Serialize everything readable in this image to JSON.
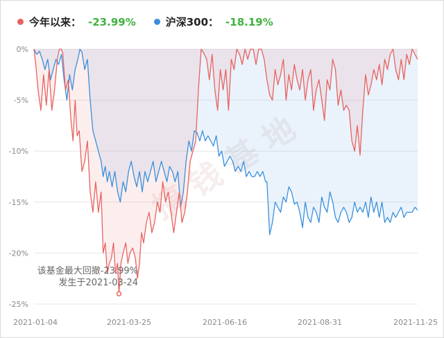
{
  "chart_data": {
    "type": "area",
    "legend": [
      {
        "name": "今年以来：",
        "value": "-23.99%",
        "color": "#e8625f"
      },
      {
        "name": "沪深300：",
        "value": "-18.19%",
        "color": "#3a8fdc"
      }
    ],
    "y_ticks": [
      "0%",
      "-5%",
      "-10%",
      "-15%",
      "-20%",
      "-25%"
    ],
    "x_ticks": [
      "2021-01-04",
      "2021-03-25",
      "2021-06-16",
      "2021-08-31",
      "2021-11-25"
    ],
    "ylim": [
      -25,
      0
    ],
    "grid": true,
    "watermark": "搞 钱 基 地",
    "annotation": {
      "line1": "该基金最大回撤-23.99%",
      "line2": "发生于2021-03-24",
      "date": "2021-03-24",
      "value": -23.99
    },
    "series": [
      {
        "name": "今年以来",
        "color": "#e8625f",
        "fill": "rgba(240,120,120,0.13)",
        "points": [
          [
            0,
            0
          ],
          [
            3,
            -1.8
          ],
          [
            6,
            -4
          ],
          [
            10,
            -6
          ],
          [
            14,
            -2.5
          ],
          [
            18,
            -5.5
          ],
          [
            22,
            -2
          ],
          [
            26,
            -6
          ],
          [
            30,
            -4
          ],
          [
            34,
            -1
          ],
          [
            37,
            0
          ],
          [
            40,
            0
          ],
          [
            42,
            -0.4
          ],
          [
            46,
            -4
          ],
          [
            50,
            -3
          ],
          [
            54,
            -7
          ],
          [
            57,
            -9
          ],
          [
            60,
            -5
          ],
          [
            63,
            -8.5
          ],
          [
            66,
            -8
          ],
          [
            70,
            -12
          ],
          [
            74,
            -11
          ],
          [
            78,
            -9
          ],
          [
            82,
            -14
          ],
          [
            86,
            -16
          ],
          [
            90,
            -13
          ],
          [
            94,
            -16
          ],
          [
            98,
            -14
          ],
          [
            101,
            -20
          ],
          [
            104,
            -19
          ],
          [
            107,
            -22
          ],
          [
            110,
            -21
          ],
          [
            113,
            -20.5
          ],
          [
            116,
            -19
          ],
          [
            119,
            -22
          ],
          [
            122,
            -21
          ],
          [
            124,
            -23.99
          ],
          [
            127,
            -21
          ],
          [
            130,
            -20
          ],
          [
            134,
            -19
          ],
          [
            137,
            -21
          ],
          [
            140,
            -20
          ],
          [
            144,
            -19.5
          ],
          [
            148,
            -20.5
          ],
          [
            151,
            -22.5
          ],
          [
            154,
            -21
          ],
          [
            157,
            -18
          ],
          [
            160,
            -19
          ],
          [
            164,
            -17
          ],
          [
            168,
            -16
          ],
          [
            172,
            -18
          ],
          [
            176,
            -17
          ],
          [
            180,
            -15
          ],
          [
            184,
            -16
          ],
          [
            188,
            -13
          ],
          [
            192,
            -15
          ],
          [
            196,
            -14
          ],
          [
            200,
            -16
          ],
          [
            204,
            -18
          ],
          [
            208,
            -16
          ],
          [
            212,
            -14
          ],
          [
            216,
            -17
          ],
          [
            220,
            -16
          ],
          [
            224,
            -14
          ],
          [
            228,
            -11
          ],
          [
            232,
            -10
          ],
          [
            236,
            -9
          ],
          [
            240,
            -4
          ],
          [
            244,
            0
          ],
          [
            248,
            -0.4
          ],
          [
            252,
            -1
          ],
          [
            256,
            -3
          ],
          [
            260,
            -0.5
          ],
          [
            264,
            -4
          ],
          [
            268,
            -6
          ],
          [
            272,
            -2
          ],
          [
            276,
            -4
          ],
          [
            280,
            -2
          ],
          [
            284,
            -6
          ],
          [
            288,
            -1
          ],
          [
            292,
            -2
          ],
          [
            296,
            0
          ],
          [
            300,
            -0.5
          ],
          [
            304,
            -1.5
          ],
          [
            308,
            0
          ],
          [
            312,
            -1
          ],
          [
            316,
            0
          ],
          [
            320,
            0
          ],
          [
            324,
            -1.5
          ],
          [
            328,
            0
          ],
          [
            332,
            0
          ],
          [
            336,
            -1
          ],
          [
            340,
            -3
          ],
          [
            344,
            -4.5
          ],
          [
            348,
            -5
          ],
          [
            352,
            -2
          ],
          [
            356,
            -3.5
          ],
          [
            360,
            -2.5
          ],
          [
            364,
            -1
          ],
          [
            368,
            -5
          ],
          [
            372,
            -2.5
          ],
          [
            376,
            -4
          ],
          [
            380,
            -1.5
          ],
          [
            384,
            -3
          ],
          [
            388,
            -4
          ],
          [
            392,
            -2
          ],
          [
            396,
            -5
          ],
          [
            400,
            -3
          ],
          [
            404,
            -2
          ],
          [
            408,
            -6
          ],
          [
            412,
            -4
          ],
          [
            416,
            -3
          ],
          [
            420,
            -5
          ],
          [
            424,
            -7
          ],
          [
            428,
            -3
          ],
          [
            432,
            -4
          ],
          [
            436,
            -1
          ],
          [
            440,
            -2
          ],
          [
            444,
            -5.5
          ],
          [
            448,
            -4
          ],
          [
            452,
            -6
          ],
          [
            456,
            -5.5
          ],
          [
            460,
            -6
          ],
          [
            464,
            -9
          ],
          [
            468,
            -10
          ],
          [
            472,
            -7.5
          ],
          [
            476,
            -10.4
          ],
          [
            480,
            -6
          ],
          [
            484,
            -2.5
          ],
          [
            488,
            -4.5
          ],
          [
            492,
            -3.5
          ],
          [
            496,
            -2
          ],
          [
            500,
            -3
          ],
          [
            504,
            -1.5
          ],
          [
            508,
            -3.5
          ],
          [
            512,
            -1
          ],
          [
            516,
            -2
          ],
          [
            520,
            -0.5
          ],
          [
            524,
            0
          ],
          [
            528,
            -2
          ],
          [
            532,
            -3
          ],
          [
            536,
            -1
          ],
          [
            540,
            -3
          ],
          [
            544,
            -0.5
          ],
          [
            548,
            -1.5
          ],
          [
            552,
            0
          ],
          [
            556,
            -0.5
          ],
          [
            560,
            -1
          ]
        ]
      },
      {
        "name": "沪深300",
        "color": "#3a8fdc",
        "fill": "rgba(140,190,240,0.18)",
        "points": [
          [
            0,
            0
          ],
          [
            4,
            -0.5
          ],
          [
            8,
            -0.2
          ],
          [
            12,
            -1
          ],
          [
            16,
            -2
          ],
          [
            20,
            -1
          ],
          [
            24,
            -3
          ],
          [
            28,
            -2
          ],
          [
            32,
            -1
          ],
          [
            36,
            -1.5
          ],
          [
            40,
            -0.5
          ],
          [
            44,
            -3
          ],
          [
            48,
            -5
          ],
          [
            52,
            -2.5
          ],
          [
            56,
            -4
          ],
          [
            60,
            -2
          ],
          [
            64,
            -1
          ],
          [
            67,
            0
          ],
          [
            70,
            -0.3
          ],
          [
            74,
            -2
          ],
          [
            78,
            -1
          ],
          [
            82,
            -5
          ],
          [
            86,
            -8
          ],
          [
            90,
            -9
          ],
          [
            94,
            -10
          ],
          [
            98,
            -11
          ],
          [
            101,
            -12.5
          ],
          [
            104,
            -11.5
          ],
          [
            107,
            -13
          ],
          [
            110,
            -12
          ],
          [
            114,
            -13.5
          ],
          [
            118,
            -12
          ],
          [
            122,
            -14
          ],
          [
            126,
            -15
          ],
          [
            130,
            -13
          ],
          [
            134,
            -14
          ],
          [
            138,
            -12
          ],
          [
            142,
            -11
          ],
          [
            146,
            -12.5
          ],
          [
            150,
            -13.5
          ],
          [
            154,
            -12
          ],
          [
            158,
            -14
          ],
          [
            162,
            -12
          ],
          [
            166,
            -13
          ],
          [
            170,
            -12
          ],
          [
            174,
            -11
          ],
          [
            178,
            -13
          ],
          [
            182,
            -12
          ],
          [
            186,
            -11
          ],
          [
            190,
            -12
          ],
          [
            194,
            -13
          ],
          [
            198,
            -11.5
          ],
          [
            202,
            -12
          ],
          [
            206,
            -13
          ],
          [
            210,
            -12
          ],
          [
            214,
            -15.5
          ],
          [
            218,
            -14
          ],
          [
            222,
            -11
          ],
          [
            226,
            -9
          ],
          [
            230,
            -10
          ],
          [
            234,
            -8
          ],
          [
            238,
            -8.2
          ],
          [
            242,
            -9
          ],
          [
            246,
            -8
          ],
          [
            250,
            -9
          ],
          [
            254,
            -8.5
          ],
          [
            258,
            -9
          ],
          [
            262,
            -9.5
          ],
          [
            266,
            -8.5
          ],
          [
            270,
            -10.5
          ],
          [
            274,
            -10
          ],
          [
            278,
            -11.5
          ],
          [
            282,
            -11
          ],
          [
            286,
            -10.5
          ],
          [
            290,
            -11
          ],
          [
            294,
            -12
          ],
          [
            298,
            -11.5
          ],
          [
            302,
            -12
          ],
          [
            306,
            -11
          ],
          [
            310,
            -12.5
          ],
          [
            314,
            -12
          ],
          [
            318,
            -12.5
          ],
          [
            322,
            -12.5
          ],
          [
            326,
            -12
          ],
          [
            330,
            -12.5
          ],
          [
            334,
            -12
          ],
          [
            338,
            -13
          ],
          [
            340,
            -13
          ],
          [
            344,
            -18.2
          ],
          [
            348,
            -17
          ],
          [
            352,
            -15
          ],
          [
            356,
            -15.5
          ],
          [
            360,
            -16
          ],
          [
            364,
            -14.5
          ],
          [
            368,
            -15
          ],
          [
            372,
            -13.5
          ],
          [
            376,
            -14
          ],
          [
            380,
            -15.2
          ],
          [
            384,
            -15
          ],
          [
            388,
            -16
          ],
          [
            392,
            -17.5
          ],
          [
            396,
            -15
          ],
          [
            400,
            -16.5
          ],
          [
            404,
            -17
          ],
          [
            408,
            -15.5
          ],
          [
            412,
            -16
          ],
          [
            416,
            -17
          ],
          [
            420,
            -14.5
          ],
          [
            424,
            -15.5
          ],
          [
            428,
            -16
          ],
          [
            432,
            -14
          ],
          [
            436,
            -15
          ],
          [
            440,
            -16.5
          ],
          [
            444,
            -17
          ],
          [
            448,
            -16
          ],
          [
            452,
            -15.5
          ],
          [
            456,
            -16
          ],
          [
            460,
            -17
          ],
          [
            464,
            -16.5
          ],
          [
            468,
            -15
          ],
          [
            472,
            -16
          ],
          [
            476,
            -15.5
          ],
          [
            480,
            -16
          ],
          [
            484,
            -15
          ],
          [
            488,
            -16.5
          ],
          [
            492,
            -14.5
          ],
          [
            496,
            -16
          ],
          [
            500,
            -15
          ],
          [
            504,
            -16.5
          ],
          [
            508,
            -15
          ],
          [
            512,
            -17
          ],
          [
            516,
            -16.5
          ],
          [
            520,
            -17
          ],
          [
            524,
            -16
          ],
          [
            528,
            -16.5
          ],
          [
            532,
            -16
          ],
          [
            536,
            -15.5
          ],
          [
            540,
            -16.5
          ],
          [
            544,
            -16
          ],
          [
            548,
            -16
          ],
          [
            552,
            -16
          ],
          [
            556,
            -15.5
          ],
          [
            560,
            -15.8
          ]
        ]
      }
    ]
  }
}
